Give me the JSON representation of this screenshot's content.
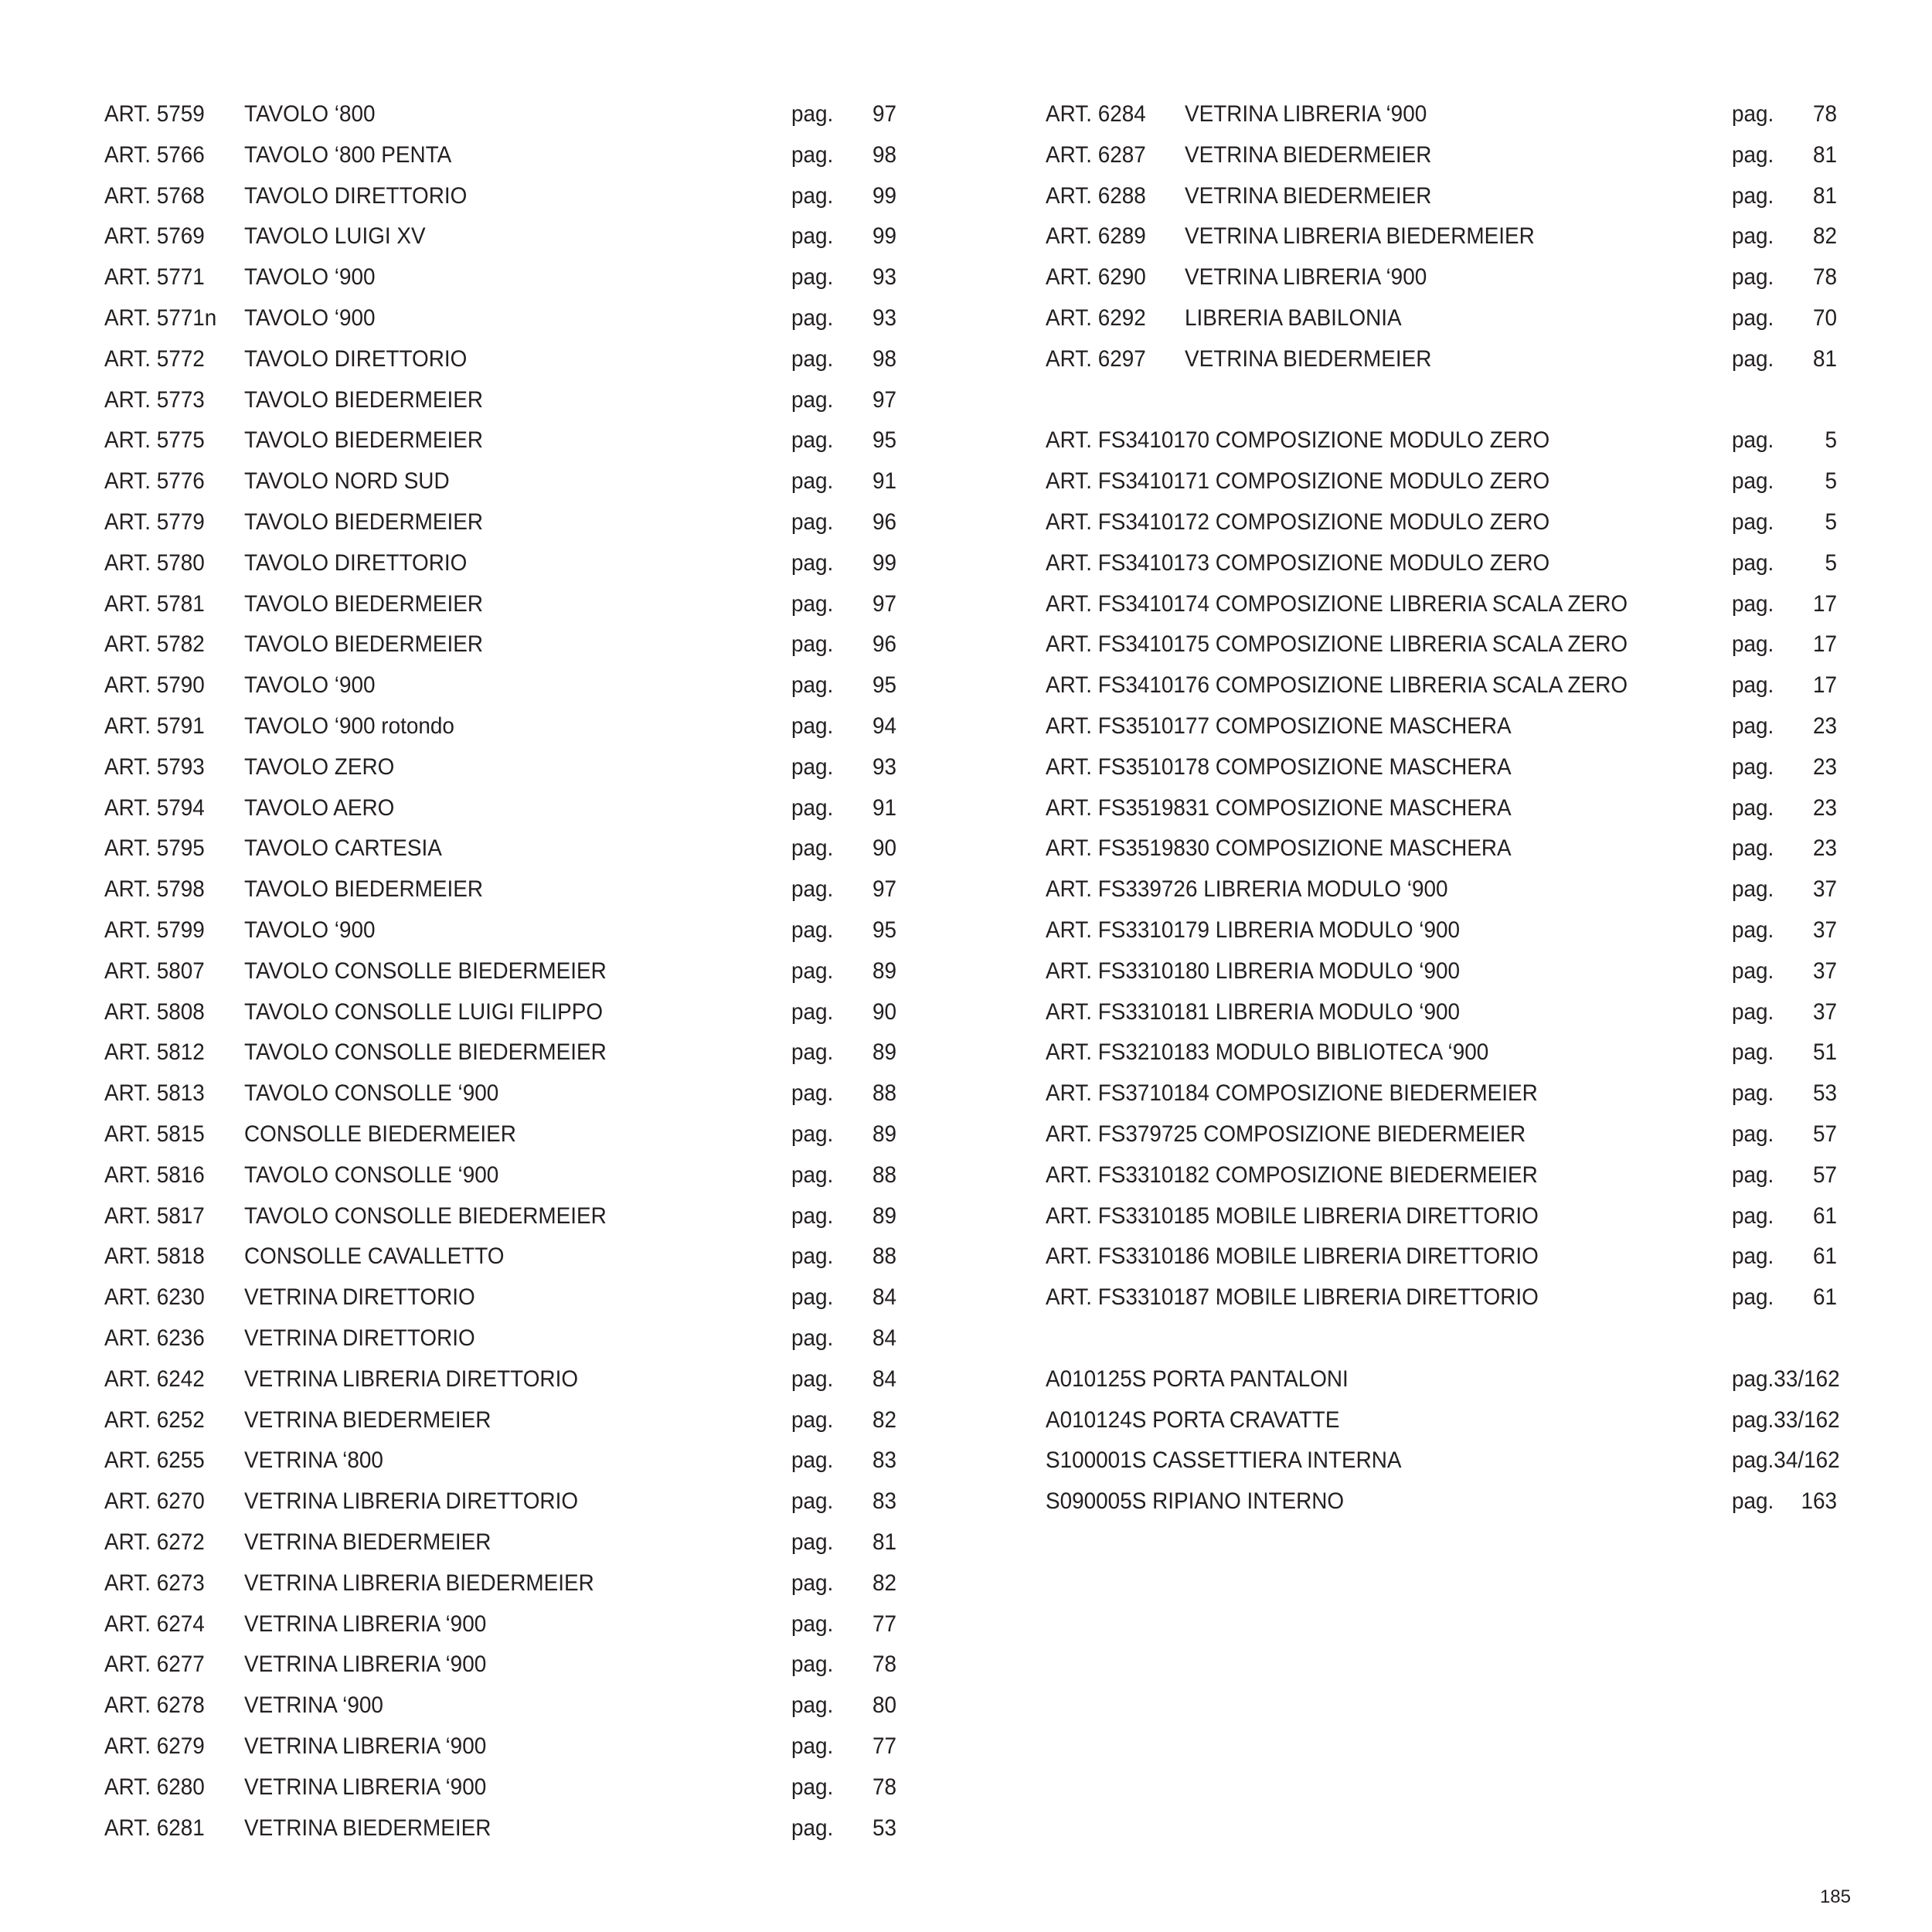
{
  "left_column": [
    {
      "art": "ART. 5759",
      "name": "TAVOLO ‘800",
      "pag": "pag.",
      "page": "97"
    },
    {
      "art": "ART. 5766",
      "name": "TAVOLO ‘800 PENTA",
      "pag": "pag.",
      "page": "98"
    },
    {
      "art": "ART. 5768",
      "name": "TAVOLO DIRETTORIO",
      "pag": "pag.",
      "page": "99"
    },
    {
      "art": "ART. 5769",
      "name": "TAVOLO LUIGI XV",
      "pag": "pag.",
      "page": "99"
    },
    {
      "art": "ART. 5771",
      "name": "TAVOLO ‘900",
      "pag": "pag.",
      "page": "93"
    },
    {
      "art": "ART. 5771n",
      "name": "TAVOLO ‘900",
      "pag": "pag.",
      "page": "93"
    },
    {
      "art": "ART. 5772",
      "name": "TAVOLO DIRETTORIO",
      "pag": "pag.",
      "page": "98"
    },
    {
      "art": "ART. 5773",
      "name": "TAVOLO BIEDERMEIER",
      "pag": "pag.",
      "page": "97"
    },
    {
      "art": "ART. 5775",
      "name": "TAVOLO BIEDERMEIER",
      "pag": "pag.",
      "page": "95"
    },
    {
      "art": "ART. 5776",
      "name": "TAVOLO NORD SUD",
      "pag": "pag.",
      "page": "91"
    },
    {
      "art": "ART. 5779",
      "name": "TAVOLO BIEDERMEIER",
      "pag": "pag.",
      "page": "96"
    },
    {
      "art": "ART. 5780",
      "name": "TAVOLO DIRETTORIO",
      "pag": "pag.",
      "page": "99"
    },
    {
      "art": "ART. 5781",
      "name": "TAVOLO BIEDERMEIER",
      "pag": "pag.",
      "page": "97"
    },
    {
      "art": "ART. 5782",
      "name": "TAVOLO BIEDERMEIER",
      "pag": "pag.",
      "page": "96"
    },
    {
      "art": "ART. 5790",
      "name": "TAVOLO ‘900",
      "pag": "pag.",
      "page": "95"
    },
    {
      "art": "ART. 5791",
      "name": "TAVOLO ‘900 rotondo",
      "pag": "pag.",
      "page": "94"
    },
    {
      "art": "ART. 5793",
      "name": "TAVOLO ZERO",
      "pag": "pag.",
      "page": "93"
    },
    {
      "art": "ART. 5794",
      "name": "TAVOLO AERO",
      "pag": "pag.",
      "page": "91"
    },
    {
      "art": "ART. 5795",
      "name": "TAVOLO CARTESIA",
      "pag": "pag.",
      "page": "90"
    },
    {
      "art": "ART. 5798",
      "name": "TAVOLO BIEDERMEIER",
      "pag": "pag.",
      "page": "97"
    },
    {
      "art": "ART. 5799",
      "name": "TAVOLO ‘900",
      "pag": "pag.",
      "page": "95"
    },
    {
      "art": "ART. 5807",
      "name": "TAVOLO CONSOLLE BIEDERMEIER",
      "pag": "pag.",
      "page": "89"
    },
    {
      "art": "ART. 5808",
      "name": "TAVOLO CONSOLLE LUIGI FILIPPO",
      "pag": "pag.",
      "page": "90"
    },
    {
      "art": "ART. 5812",
      "name": "TAVOLO CONSOLLE BIEDERMEIER",
      "pag": "pag.",
      "page": "89"
    },
    {
      "art": "ART. 5813",
      "name": "TAVOLO CONSOLLE ‘900",
      "pag": "pag.",
      "page": "88"
    },
    {
      "art": "ART. 5815",
      "name": "CONSOLLE BIEDERMEIER",
      "pag": "pag.",
      "page": "89"
    },
    {
      "art": "ART. 5816",
      "name": "TAVOLO CONSOLLE ‘900",
      "pag": "pag.",
      "page": "88"
    },
    {
      "art": "ART. 5817",
      "name": "TAVOLO CONSOLLE BIEDERMEIER",
      "pag": "pag.",
      "page": "89"
    },
    {
      "art": "ART. 5818",
      "name": "CONSOLLE CAVALLETTO",
      "pag": "pag.",
      "page": "88"
    },
    {
      "art": "ART. 6230",
      "name": "VETRINA DIRETTORIO",
      "pag": "pag.",
      "page": "84"
    },
    {
      "art": "ART. 6236",
      "name": "VETRINA DIRETTORIO",
      "pag": "pag.",
      "page": "84"
    },
    {
      "art": "ART. 6242",
      "name": "VETRINA LIBRERIA DIRETTORIO",
      "pag": "pag.",
      "page": "84"
    },
    {
      "art": "ART. 6252",
      "name": "VETRINA BIEDERMEIER",
      "pag": "pag.",
      "page": "82"
    },
    {
      "art": "ART. 6255",
      "name": "VETRINA ‘800",
      "pag": "pag.",
      "page": "83"
    },
    {
      "art": "ART. 6270",
      "name": "VETRINA LIBRERIA DIRETTORIO",
      "pag": "pag.",
      "page": "83"
    },
    {
      "art": "ART. 6272",
      "name": "VETRINA BIEDERMEIER",
      "pag": "pag.",
      "page": "81"
    },
    {
      "art": "ART. 6273",
      "name": "VETRINA LIBRERIA BIEDERMEIER",
      "pag": "pag.",
      "page": "82"
    },
    {
      "art": "ART. 6274",
      "name": "VETRINA LIBRERIA ‘900",
      "pag": "pag.",
      "page": "77"
    },
    {
      "art": "ART. 6277",
      "name": "VETRINA LIBRERIA ‘900",
      "pag": "pag.",
      "page": "78"
    },
    {
      "art": "ART. 6278",
      "name": "VETRINA ‘900",
      "pag": "pag.",
      "page": "80"
    },
    {
      "art": "ART. 6279",
      "name": "VETRINA LIBRERIA ‘900",
      "pag": "pag.",
      "page": "77"
    },
    {
      "art": "ART. 6280",
      "name": "VETRINA LIBRERIA ‘900",
      "pag": "pag.",
      "page": "78"
    },
    {
      "art": "ART. 6281",
      "name": "VETRINA BIEDERMEIER",
      "pag": "pag.",
      "page": "53"
    }
  ],
  "right_column": {
    "vetrine": [
      {
        "art": "ART. 6284",
        "name": "VETRINA LIBRERIA ‘900",
        "pag": "pag.",
        "page": "78"
      },
      {
        "art": "ART. 6287",
        "name": "VETRINA BIEDERMEIER",
        "pag": "pag.",
        "page": "81"
      },
      {
        "art": "ART. 6288",
        "name": "VETRINA BIEDERMEIER",
        "pag": "pag.",
        "page": "81"
      },
      {
        "art": "ART. 6289",
        "name": "VETRINA LIBRERIA BIEDERMEIER",
        "pag": "pag.",
        "page": "82"
      },
      {
        "art": "ART. 6290",
        "name": "VETRINA LIBRERIA ‘900",
        "pag": "pag.",
        "page": "78"
      },
      {
        "art": "ART. 6292",
        "name": "LIBRERIA BABILONIA",
        "pag": "pag.",
        "page": "70"
      },
      {
        "art": "ART. 6297",
        "name": "VETRINA BIEDERMEIER",
        "pag": "pag.",
        "page": "81"
      }
    ],
    "composizioni": [
      {
        "art": "ART. FS3410170 COMPOSIZIONE MODULO ZERO",
        "pag": "pag.",
        "page": "5"
      },
      {
        "art": "ART. FS3410171 COMPOSIZIONE MODULO ZERO",
        "pag": "pag.",
        "page": "5"
      },
      {
        "art": "ART. FS3410172 COMPOSIZIONE MODULO ZERO",
        "pag": "pag.",
        "page": "5"
      },
      {
        "art": "ART. FS3410173 COMPOSIZIONE MODULO ZERO",
        "pag": "pag.",
        "page": "5"
      },
      {
        "art": "ART. FS3410174 COMPOSIZIONE LIBRERIA SCALA ZERO",
        "pag": "pag.",
        "page": "17"
      },
      {
        "art": "ART. FS3410175 COMPOSIZIONE LIBRERIA SCALA ZERO",
        "pag": "pag.",
        "page": "17"
      },
      {
        "art": "ART. FS3410176 COMPOSIZIONE LIBRERIA SCALA ZERO",
        "pag": "pag.",
        "page": "17"
      },
      {
        "art": "ART. FS3510177 COMPOSIZIONE MASCHERA",
        "pag": "pag.",
        "page": "23"
      },
      {
        "art": "ART. FS3510178 COMPOSIZIONE MASCHERA",
        "pag": "pag.",
        "page": "23"
      },
      {
        "art": "ART. FS3519831 COMPOSIZIONE MASCHERA",
        "pag": "pag.",
        "page": "23"
      },
      {
        "art": "ART. FS3519830 COMPOSIZIONE MASCHERA",
        "pag": "pag.",
        "page": "23"
      },
      {
        "art": "ART. FS339726 LIBRERIA MODULO ‘900",
        "pag": "pag.",
        "page": "37"
      },
      {
        "art": "ART. FS3310179 LIBRERIA MODULO ‘900",
        "pag": "pag.",
        "page": "37"
      },
      {
        "art": "ART. FS3310180 LIBRERIA MODULO ‘900",
        "pag": "pag.",
        "page": "37"
      },
      {
        "art": "ART. FS3310181 LIBRERIA MODULO ‘900",
        "pag": "pag.",
        "page": "37"
      },
      {
        "art": "ART. FS3210183 MODULO BIBLIOTECA ‘900",
        "pag": "pag.",
        "page": "51"
      },
      {
        "art": "ART. FS3710184 COMPOSIZIONE BIEDERMEIER",
        "pag": "pag.",
        "page": "53"
      },
      {
        "art": "ART. FS379725 COMPOSIZIONE BIEDERMEIER",
        "pag": "pag.",
        "page": "57"
      },
      {
        "art": "ART. FS3310182 COMPOSIZIONE BIEDERMEIER",
        "pag": "pag.",
        "page": "57"
      },
      {
        "art": "ART. FS3310185 MOBILE LIBRERIA DIRETTORIO",
        "pag": "pag.",
        "page": "61"
      },
      {
        "art": "ART. FS3310186 MOBILE LIBRERIA DIRETTORIO",
        "pag": "pag.",
        "page": "61"
      },
      {
        "art": "ART. FS3310187 MOBILE LIBRERIA DIRETTORIO",
        "pag": "pag.",
        "page": "61"
      }
    ],
    "accessori": [
      {
        "art": "A010125S PORTA PANTALONI",
        "pag": "pag.33/162"
      },
      {
        "art": "A010124S PORTA CRAVATTE",
        "pag": "pag.33/162"
      },
      {
        "art": "S100001S CASSETTIERA INTERNA",
        "pag": "pag.34/162"
      },
      {
        "art": "S090005S RIPIANO INTERNO",
        "pag": "pag.",
        "page": "163"
      }
    ]
  },
  "page_number": "185"
}
